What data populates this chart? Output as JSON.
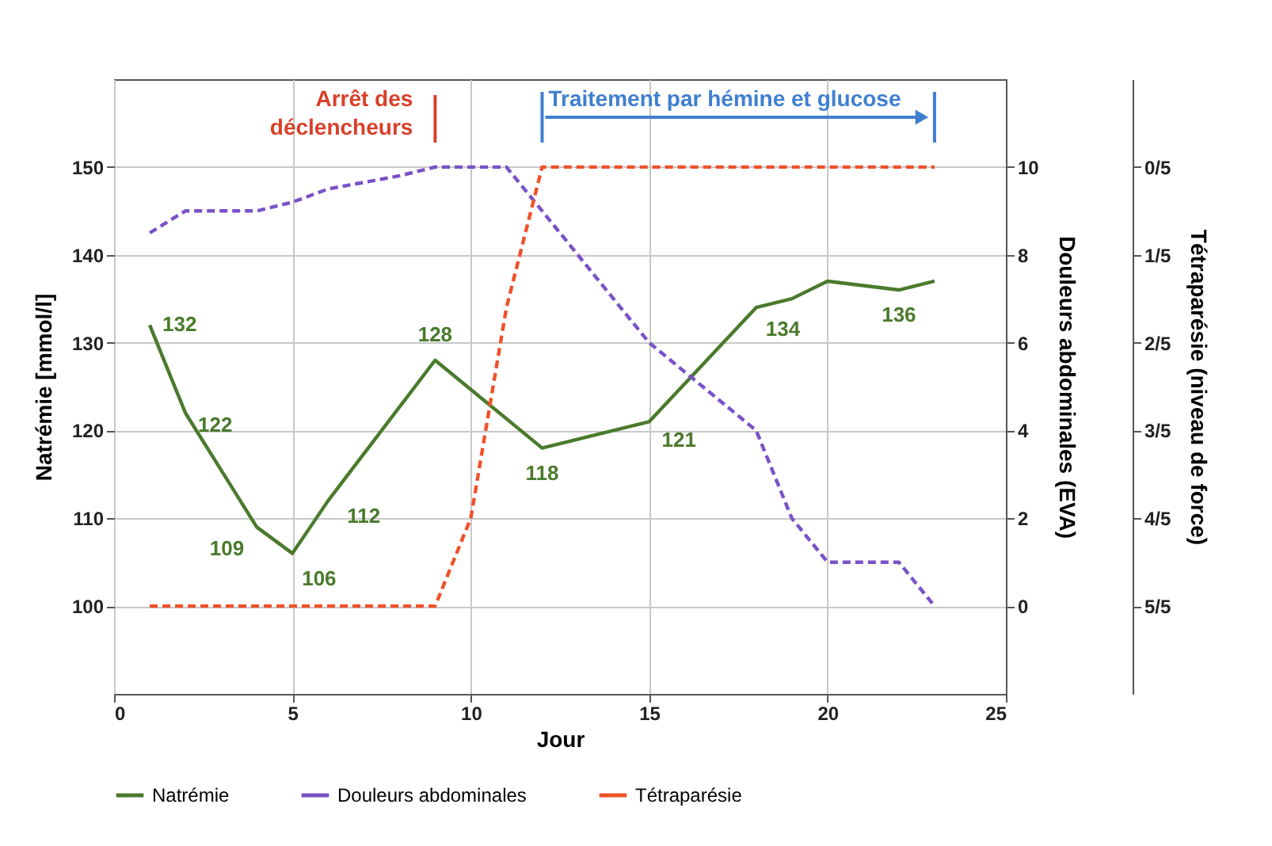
{
  "chart_data": {
    "type": "line",
    "xlabel": "Jour",
    "ylabel": "Natrémie [mmol/l]",
    "y2label": "Douleurs abdominales (EVA)",
    "y3label": "Tétraparésie (niveau de force)",
    "xlim": [
      0,
      25
    ],
    "xticks": [
      0,
      5,
      10,
      15,
      20,
      25
    ],
    "ylim": [
      90,
      160
    ],
    "yticks": [
      100,
      110,
      120,
      130,
      140,
      150
    ],
    "y2lim": [
      -2,
      12
    ],
    "y2ticks": [
      0,
      2,
      4,
      6,
      8,
      10
    ],
    "y3lim": [
      1.2,
      -0.2
    ],
    "y3ticks": [
      {
        "value": 0,
        "label": "0/5"
      },
      {
        "value": 0.2,
        "label": "1/5"
      },
      {
        "value": 0.4,
        "label": "2/5"
      },
      {
        "value": 0.6,
        "label": "3/5"
      },
      {
        "value": 0.8,
        "label": "4/5"
      },
      {
        "value": 1,
        "label": "5/5"
      }
    ],
    "grid": true,
    "legend": "bottom",
    "series": [
      {
        "name": "Natrémie",
        "color": "#4a7a2c",
        "line_style": "solid",
        "x": [
          1,
          2,
          4,
          5,
          6,
          9,
          12,
          15,
          18,
          19,
          20,
          22,
          23
        ],
        "values": [
          132,
          122,
          109,
          106,
          112,
          128,
          118,
          121,
          134,
          135,
          137,
          136,
          137
        ],
        "value_labels": [
          "132",
          "122",
          "109",
          "106",
          "112",
          "128",
          "118",
          "121",
          "134",
          null,
          null,
          "136",
          null
        ]
      },
      {
        "name": "Douleurs abdominales",
        "color": "#7a52c7",
        "line_style": "dashed",
        "axis": "y2",
        "x": [
          1,
          2,
          4,
          5,
          6,
          8,
          9,
          11,
          15,
          18,
          19,
          20,
          22,
          23
        ],
        "values": [
          8.5,
          9,
          9,
          9.2,
          9.5,
          9.8,
          10,
          10,
          6,
          4,
          2,
          1,
          1,
          0
        ]
      },
      {
        "name": "Tétraparésie",
        "color": "#f0512a",
        "line_style": "dashed",
        "axis": "y3",
        "x": [
          1,
          9,
          10,
          11,
          12,
          23
        ],
        "values": [
          1,
          1,
          0.8,
          0.32,
          0,
          0
        ]
      }
    ],
    "ref_lines": [
      {
        "axis": "x",
        "value": 9,
        "label": "Arrêt des déclencheurs",
        "color": "#d9402a"
      },
      {
        "axis": "x",
        "value": 12,
        "label": "Traitement par hémine et glucose",
        "color": "#3f7fd0"
      },
      {
        "axis": "x",
        "value": 23,
        "color": "#3f7fd0"
      }
    ]
  }
}
